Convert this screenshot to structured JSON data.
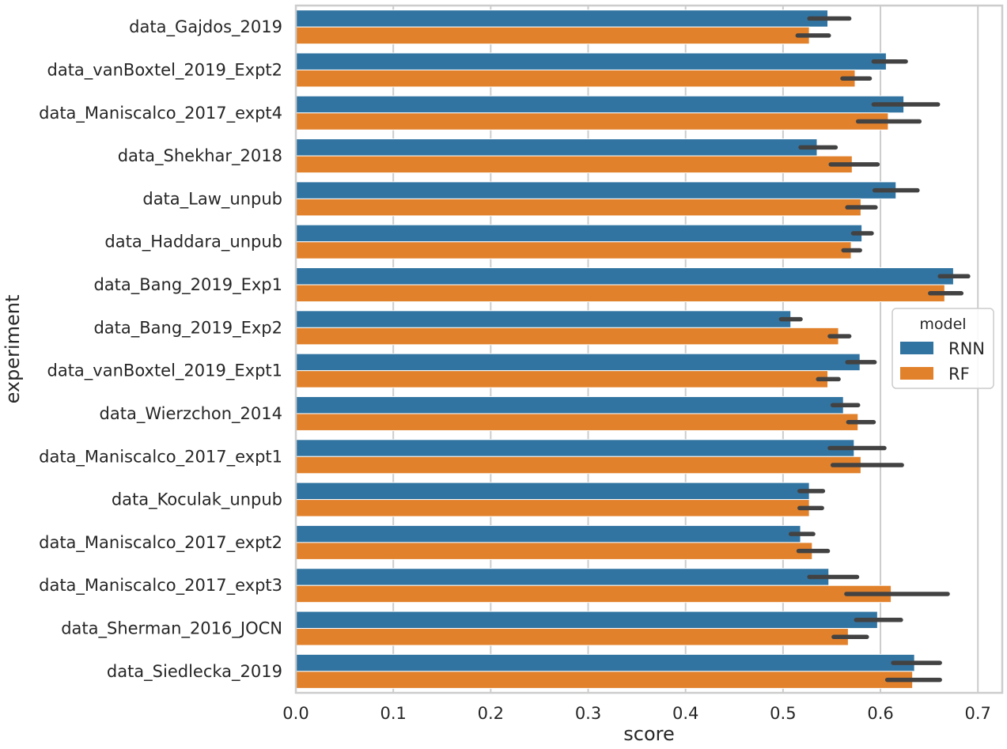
{
  "chart_data": {
    "type": "bar",
    "orientation": "horizontal",
    "xlabel": "score",
    "ylabel": "experiment",
    "xlim": [
      0.0,
      0.725
    ],
    "xticks": [
      "0.0",
      "0.1",
      "0.2",
      "0.3",
      "0.4",
      "0.5",
      "0.6",
      "0.7"
    ],
    "grid": true,
    "categories": [
      "data_Gajdos_2019",
      "data_vanBoxtel_2019_Expt2",
      "data_Maniscalco_2017_expt4",
      "data_Shekhar_2018",
      "data_Law_unpub",
      "data_Haddara_unpub",
      "data_Bang_2019_Exp1",
      "data_Bang_2019_Exp2",
      "data_vanBoxtel_2019_Expt1",
      "data_Wierzchon_2014",
      "data_Maniscalco_2017_expt1",
      "data_Koculak_unpub",
      "data_Maniscalco_2017_expt2",
      "data_Maniscalco_2017_expt3",
      "data_Sherman_2016_JOCN",
      "data_Siedlecka_2019"
    ],
    "series": [
      {
        "name": "RNN",
        "color": "#3274a1",
        "values": [
          0.546,
          0.606,
          0.624,
          0.535,
          0.616,
          0.581,
          0.675,
          0.508,
          0.579,
          0.562,
          0.573,
          0.527,
          0.518,
          0.547,
          0.597,
          0.635
        ],
        "ci": [
          [
            0.527,
            0.568
          ],
          [
            0.593,
            0.626
          ],
          [
            0.593,
            0.659
          ],
          [
            0.518,
            0.554
          ],
          [
            0.594,
            0.638
          ],
          [
            0.572,
            0.591
          ],
          [
            0.661,
            0.69
          ],
          [
            0.498,
            0.518
          ],
          [
            0.566,
            0.594
          ],
          [
            0.551,
            0.577
          ],
          [
            0.548,
            0.604
          ],
          [
            0.517,
            0.541
          ],
          [
            0.508,
            0.531
          ],
          [
            0.527,
            0.576
          ],
          [
            0.575,
            0.621
          ],
          [
            0.613,
            0.661
          ]
        ]
      },
      {
        "name": "RF",
        "color": "#e1812c",
        "values": [
          0.527,
          0.574,
          0.608,
          0.571,
          0.58,
          0.57,
          0.666,
          0.557,
          0.546,
          0.577,
          0.58,
          0.527,
          0.53,
          0.611,
          0.567,
          0.633
        ],
        "ci": [
          [
            0.515,
            0.547
          ],
          [
            0.561,
            0.589
          ],
          [
            0.577,
            0.64
          ],
          [
            0.549,
            0.597
          ],
          [
            0.566,
            0.595
          ],
          [
            0.562,
            0.579
          ],
          [
            0.651,
            0.683
          ],
          [
            0.548,
            0.568
          ],
          [
            0.536,
            0.557
          ],
          [
            0.567,
            0.593
          ],
          [
            0.551,
            0.622
          ],
          [
            0.517,
            0.54
          ],
          [
            0.516,
            0.546
          ],
          [
            0.565,
            0.669
          ],
          [
            0.552,
            0.586
          ],
          [
            0.607,
            0.661
          ]
        ]
      }
    ],
    "legend": {
      "title": "model",
      "placement": "center-right"
    }
  }
}
